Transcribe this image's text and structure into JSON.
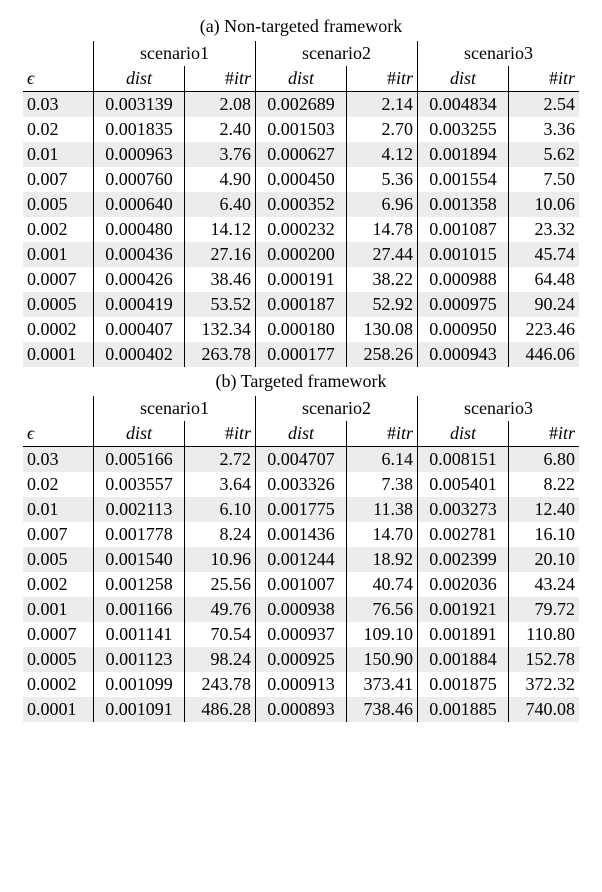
{
  "tables": [
    {
      "caption": "(a) Non-targeted framework",
      "scenario_labels": [
        "scenario1",
        "scenario2",
        "scenario3"
      ],
      "eps_header": "ϵ",
      "dist_header": "dist",
      "itr_header": "#itr",
      "eps": [
        "0.03",
        "0.02",
        "0.01",
        "0.007",
        "0.005",
        "0.002",
        "0.001",
        "0.0007",
        "0.0005",
        "0.0002",
        "0.0001"
      ],
      "rows": [
        [
          "0.003139",
          "2.08",
          "0.002689",
          "2.14",
          "0.004834",
          "2.54"
        ],
        [
          "0.001835",
          "2.40",
          "0.001503",
          "2.70",
          "0.003255",
          "3.36"
        ],
        [
          "0.000963",
          "3.76",
          "0.000627",
          "4.12",
          "0.001894",
          "5.62"
        ],
        [
          "0.000760",
          "4.90",
          "0.000450",
          "5.36",
          "0.001554",
          "7.50"
        ],
        [
          "0.000640",
          "6.40",
          "0.000352",
          "6.96",
          "0.001358",
          "10.06"
        ],
        [
          "0.000480",
          "14.12",
          "0.000232",
          "14.78",
          "0.001087",
          "23.32"
        ],
        [
          "0.000436",
          "27.16",
          "0.000200",
          "27.44",
          "0.001015",
          "45.74"
        ],
        [
          "0.000426",
          "38.46",
          "0.000191",
          "38.22",
          "0.000988",
          "64.48"
        ],
        [
          "0.000419",
          "53.52",
          "0.000187",
          "52.92",
          "0.000975",
          "90.24"
        ],
        [
          "0.000407",
          "132.34",
          "0.000180",
          "130.08",
          "0.000950",
          "223.46"
        ],
        [
          "0.000402",
          "263.78",
          "0.000177",
          "258.26",
          "0.000943",
          "446.06"
        ]
      ],
      "style": {
        "shade_color": "#ececec",
        "border_color": "#000000",
        "fontsize": 18
      }
    },
    {
      "caption": "(b) Targeted framework",
      "scenario_labels": [
        "scenario1",
        "scenario2",
        "scenario3"
      ],
      "eps_header": "ϵ",
      "dist_header": "dist",
      "itr_header": "#itr",
      "eps": [
        "0.03",
        "0.02",
        "0.01",
        "0.007",
        "0.005",
        "0.002",
        "0.001",
        "0.0007",
        "0.0005",
        "0.0002",
        "0.0001"
      ],
      "rows": [
        [
          "0.005166",
          "2.72",
          "0.004707",
          "6.14",
          "0.008151",
          "6.80"
        ],
        [
          "0.003557",
          "3.64",
          "0.003326",
          "7.38",
          "0.005401",
          "8.22"
        ],
        [
          "0.002113",
          "6.10",
          "0.001775",
          "11.38",
          "0.003273",
          "12.40"
        ],
        [
          "0.001778",
          "8.24",
          "0.001436",
          "14.70",
          "0.002781",
          "16.10"
        ],
        [
          "0.001540",
          "10.96",
          "0.001244",
          "18.92",
          "0.002399",
          "20.10"
        ],
        [
          "0.001258",
          "25.56",
          "0.001007",
          "40.74",
          "0.002036",
          "43.24"
        ],
        [
          "0.001166",
          "49.76",
          "0.000938",
          "76.56",
          "0.001921",
          "79.72"
        ],
        [
          "0.001141",
          "70.54",
          "0.000937",
          "109.10",
          "0.001891",
          "110.80"
        ],
        [
          "0.001123",
          "98.24",
          "0.000925",
          "150.90",
          "0.001884",
          "152.78"
        ],
        [
          "0.001099",
          "243.78",
          "0.000913",
          "373.41",
          "0.001875",
          "372.32"
        ],
        [
          "0.001091",
          "486.28",
          "0.000893",
          "738.46",
          "0.001885",
          "740.08"
        ]
      ],
      "style": {
        "shade_color": "#ececec",
        "border_color": "#000000",
        "fontsize": 18
      }
    }
  ]
}
